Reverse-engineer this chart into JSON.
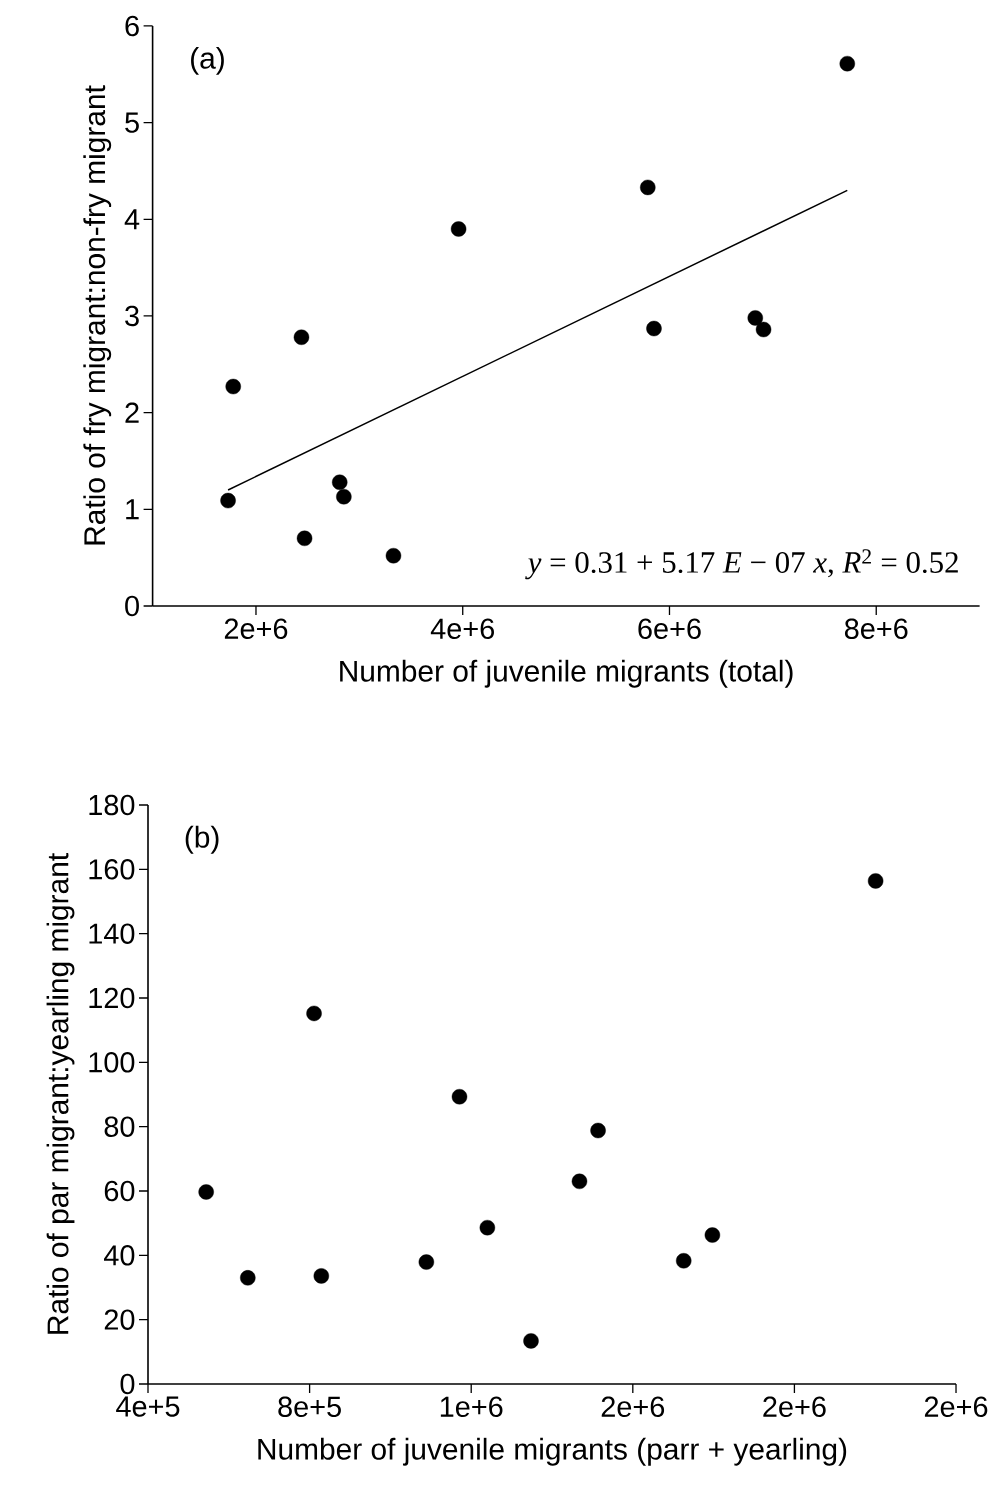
{
  "chart_data": [
    {
      "type": "scatter",
      "xlabel": "Number of juvenile migrants (total)",
      "ylabel": "Ratio of fry migrant:non-fry migrant",
      "annotations": [
        "(a)",
        "*y* = 0.31 + 5.17 *E* − 07 *x*, *R*$^{2}$ = 0.52"
      ],
      "xlim": [
        1000000,
        9000000
      ],
      "ylim": [
        0,
        6
      ],
      "xticks": [
        {
          "value": 2000000,
          "label": "2e+6"
        },
        {
          "value": 4000000,
          "label": "4e+6"
        },
        {
          "value": 6000000,
          "label": "6e+6"
        },
        {
          "value": 8000000,
          "label": "8e+6"
        }
      ],
      "yticks": [
        0,
        1,
        2,
        3,
        4,
        5,
        6
      ],
      "marker": "circle",
      "series": [
        {
          "color": "#000000",
          "x": [
            1730000,
            1780000,
            2440000,
            2470000,
            2810000,
            2850000,
            3330000,
            3960000,
            5790000,
            5850000,
            6830000,
            6910000,
            7720000
          ],
          "values": [
            1.09,
            2.27,
            2.78,
            0.7,
            1.28,
            1.13,
            0.52,
            3.9,
            4.33,
            2.87,
            2.98,
            2.86,
            5.61
          ]
        },
        {
          "type": "line",
          "color": "#000000",
          "marker": "none",
          "x": [
            1730000,
            7720000
          ],
          "values": [
            1.2,
            4.3
          ]
        }
      ]
    },
    {
      "type": "scatter",
      "xlabel": "Number of juvenile migrants (parr + yearling)",
      "ylabel": "Ratio of par migrant:yearling migrant",
      "annotations": [
        "(b)"
      ],
      "xlim": [
        400000,
        2400000
      ],
      "ylim": [
        0,
        180
      ],
      "xticks": [
        {
          "value": 400000,
          "label": "4e+5"
        },
        {
          "value": 800000,
          "label": "8e+5"
        },
        {
          "value": 1200000,
          "label": "1e+6"
        },
        {
          "value": 1600000,
          "label": "2e+6"
        },
        {
          "value": 2000000,
          "label": "2e+6"
        },
        {
          "value": 2400000,
          "label": "2e+6"
        }
      ],
      "yticks": [
        0,
        20,
        40,
        60,
        80,
        100,
        120,
        140,
        160,
        180
      ],
      "marker": "circle",
      "series": [
        {
          "color": "#000000",
          "x": [
            544000,
            647000,
            811000,
            829000,
            1089000,
            1171000,
            1240000,
            1348000,
            1468000,
            1514000,
            1726000,
            1797000,
            2201000
          ],
          "values": [
            59.7,
            33.0,
            115.2,
            33.6,
            37.9,
            89.3,
            48.6,
            13.4,
            63.0,
            78.8,
            38.3,
            46.3,
            156.4
          ]
        }
      ]
    }
  ]
}
